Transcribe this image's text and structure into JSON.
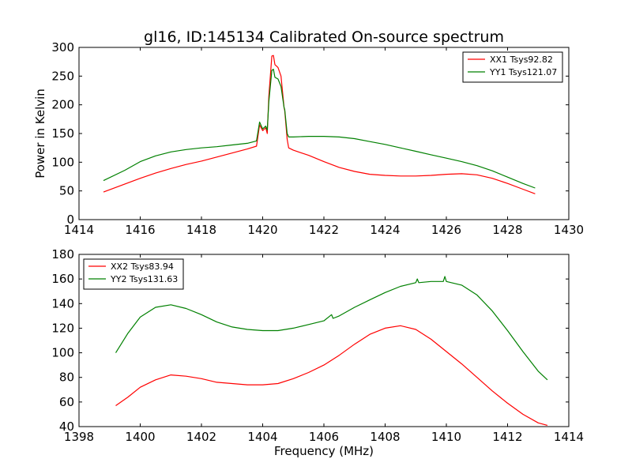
{
  "figure_title": "gl16, ID:145134 Calibrated On-source spectrum",
  "chart_data": [
    {
      "type": "line",
      "title": "gl16, ID:145134 Calibrated On-source spectrum",
      "xlabel": "",
      "ylabel": "Power in Kelvin",
      "xlim": [
        1414,
        1430
      ],
      "ylim": [
        0,
        300
      ],
      "xticks": [
        1414,
        1416,
        1418,
        1420,
        1422,
        1424,
        1426,
        1428,
        1430
      ],
      "yticks": [
        0,
        50,
        100,
        150,
        200,
        250,
        300
      ],
      "legend_position": "top-right",
      "series": [
        {
          "name": "XX1 Tsys92.82",
          "color": "#ff0000",
          "x": [
            1414.8,
            1415.5,
            1416,
            1416.5,
            1417,
            1417.5,
            1418,
            1418.5,
            1419,
            1419.5,
            1419.8,
            1419.9,
            1420.0,
            1420.1,
            1420.15,
            1420.2,
            1420.3,
            1420.35,
            1420.4,
            1420.5,
            1420.6,
            1420.7,
            1420.72,
            1420.8,
            1420.85,
            1421,
            1421.5,
            1422,
            1422.5,
            1423,
            1423.5,
            1424,
            1424.5,
            1425,
            1425.5,
            1426,
            1426.5,
            1427,
            1427.5,
            1428,
            1428.5,
            1428.9
          ],
          "y": [
            48,
            62,
            72,
            81,
            89,
            96,
            102,
            109,
            116,
            123,
            128,
            165,
            155,
            160,
            150,
            215,
            285,
            286,
            270,
            265,
            250,
            195,
            190,
            140,
            125,
            121,
            112,
            101,
            91,
            84,
            79,
            77,
            76,
            76,
            77,
            79,
            80,
            78,
            72,
            63,
            53,
            45
          ]
        },
        {
          "name": "YY1 Tsys121.07",
          "color": "#008000",
          "x": [
            1414.8,
            1415.5,
            1416,
            1416.5,
            1417,
            1417.5,
            1418,
            1418.5,
            1419,
            1419.5,
            1419.8,
            1419.9,
            1420.0,
            1420.1,
            1420.15,
            1420.2,
            1420.3,
            1420.35,
            1420.4,
            1420.5,
            1420.6,
            1420.7,
            1420.72,
            1420.8,
            1420.85,
            1421,
            1421.5,
            1422,
            1422.5,
            1423,
            1423.5,
            1424,
            1424.5,
            1425,
            1425.5,
            1426,
            1426.5,
            1427,
            1427.5,
            1428,
            1428.5,
            1428.9
          ],
          "y": [
            68,
            86,
            101,
            111,
            118,
            122,
            125,
            127,
            130,
            133,
            137,
            170,
            158,
            163,
            156,
            205,
            260,
            262,
            248,
            245,
            232,
            195,
            192,
            150,
            144,
            144,
            145,
            145,
            144,
            141,
            136,
            131,
            125,
            119,
            113,
            107,
            101,
            94,
            85,
            74,
            63,
            55
          ]
        }
      ]
    },
    {
      "type": "line",
      "title": "",
      "xlabel": "Frequency (MHz)",
      "ylabel": "",
      "xlim": [
        1398,
        1414
      ],
      "ylim": [
        40,
        180
      ],
      "xticks": [
        1398,
        1400,
        1402,
        1404,
        1406,
        1408,
        1410,
        1412,
        1414
      ],
      "yticks": [
        40,
        60,
        80,
        100,
        120,
        140,
        160,
        180
      ],
      "legend_position": "top-left",
      "series": [
        {
          "name": "XX2 Tsys83.94",
          "color": "#ff0000",
          "x": [
            1399.2,
            1399.6,
            1400,
            1400.5,
            1401,
            1401.5,
            1402,
            1402.5,
            1403,
            1403.5,
            1404,
            1404.5,
            1405,
            1405.5,
            1406,
            1406.5,
            1407,
            1407.5,
            1408,
            1408.5,
            1409,
            1409.5,
            1410,
            1410.5,
            1411,
            1411.5,
            1412,
            1412.5,
            1413,
            1413.3
          ],
          "y": [
            57,
            64,
            72,
            78,
            82,
            81,
            79,
            76,
            75,
            74,
            74,
            75,
            79,
            84,
            90,
            98,
            107,
            115,
            120,
            122,
            119,
            111,
            101,
            91,
            80,
            69,
            59,
            50,
            43,
            41
          ]
        },
        {
          "name": "YY2 Tsys131.63",
          "color": "#008000",
          "x": [
            1399.2,
            1399.6,
            1400,
            1400.5,
            1401,
            1401.5,
            1402,
            1402.5,
            1403,
            1403.5,
            1404,
            1404.5,
            1405,
            1405.5,
            1406,
            1406.25,
            1406.3,
            1406.5,
            1407,
            1407.5,
            1408,
            1408.5,
            1409,
            1409.05,
            1409.1,
            1409.5,
            1409.9,
            1409.95,
            1410,
            1410.5,
            1411,
            1411.5,
            1412,
            1412.5,
            1413,
            1413.3
          ],
          "y": [
            100,
            116,
            129,
            137,
            139,
            136,
            131,
            125,
            121,
            119,
            118,
            118,
            120,
            123,
            126,
            131,
            128,
            130,
            137,
            143,
            149,
            154,
            157,
            160,
            157,
            158,
            158,
            162,
            158,
            155,
            147,
            134,
            118,
            101,
            85,
            78
          ]
        }
      ]
    }
  ]
}
